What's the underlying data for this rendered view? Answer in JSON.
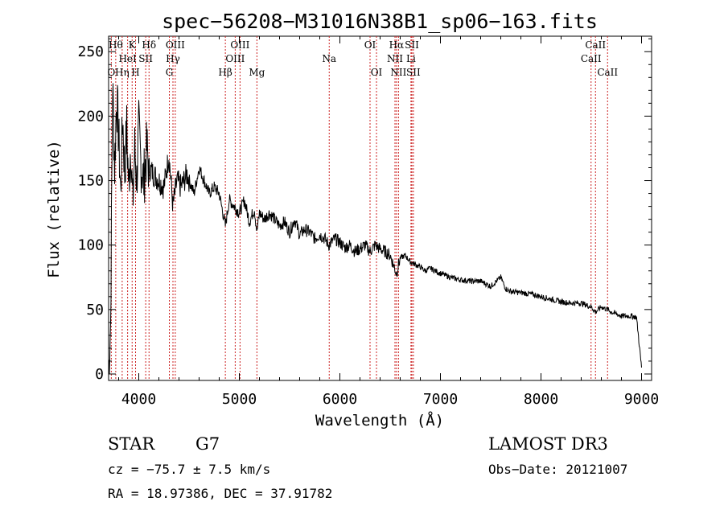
{
  "chart_data": {
    "type": "line",
    "title": "spec−56208−M31016N38B1_sp06−163.fits",
    "xlabel": "Wavelength (Å)",
    "ylabel": "Flux (relative)",
    "xlim": [
      3700,
      9100
    ],
    "ylim": [
      -5,
      262
    ],
    "x_ticks": [
      4000,
      5000,
      6000,
      7000,
      8000,
      9000
    ],
    "y_ticks": [
      0,
      50,
      100,
      150,
      200,
      250
    ],
    "grid": false,
    "series": [
      {
        "name": "spectrum",
        "x": [
          3700,
          3720,
          3740,
          3760,
          3780,
          3800,
          3820,
          3840,
          3860,
          3880,
          3900,
          3920,
          3940,
          3960,
          3980,
          4000,
          4020,
          4050,
          4080,
          4100,
          4150,
          4200,
          4250,
          4300,
          4340,
          4380,
          4420,
          4480,
          4550,
          4600,
          4650,
          4700,
          4750,
          4800,
          4861,
          4900,
          4950,
          5000,
          5050,
          5100,
          5150,
          5175,
          5200,
          5250,
          5300,
          5350,
          5400,
          5450,
          5500,
          5550,
          5600,
          5650,
          5700,
          5750,
          5800,
          5850,
          5890,
          5950,
          6000,
          6050,
          6100,
          6150,
          6200,
          6250,
          6300,
          6350,
          6400,
          6450,
          6500,
          6563,
          6600,
          6650,
          6700,
          6750,
          6800,
          6850,
          6900,
          7000,
          7100,
          7200,
          7300,
          7400,
          7500,
          7600,
          7650,
          7700,
          7800,
          7900,
          8000,
          8100,
          8200,
          8300,
          8400,
          8500,
          8542,
          8600,
          8662,
          8700,
          8800,
          8900,
          8950,
          9000
        ],
        "values": [
          0,
          40,
          225,
          160,
          215,
          185,
          140,
          200,
          155,
          190,
          145,
          180,
          130,
          175,
          150,
          190,
          165,
          150,
          175,
          160,
          155,
          150,
          145,
          170,
          130,
          150,
          145,
          155,
          140,
          160,
          150,
          140,
          145,
          140,
          115,
          135,
          130,
          125,
          135,
          118,
          128,
          110,
          125,
          120,
          125,
          120,
          115,
          118,
          110,
          120,
          108,
          112,
          110,
          105,
          108,
          105,
          100,
          105,
          102,
          98,
          100,
          95,
          97,
          100,
          95,
          100,
          97,
          95,
          92,
          78,
          90,
          92,
          87,
          85,
          83,
          80,
          82,
          78,
          75,
          73,
          72,
          72,
          68,
          75,
          66,
          64,
          63,
          62,
          60,
          58,
          56,
          55,
          55,
          52,
          48,
          52,
          50,
          48,
          45,
          45,
          44,
          5
        ]
      }
    ],
    "spectral_lines": [
      {
        "label": "O",
        "x": 3727,
        "row": 2
      },
      {
        "label": "Hθ",
        "x": 3771,
        "row": 0
      },
      {
        "label": "Hη",
        "x": 3835,
        "row": 2
      },
      {
        "label": "HeI",
        "x": 3889,
        "row": 1
      },
      {
        "label": "K",
        "x": 3934,
        "row": 0
      },
      {
        "label": "H",
        "x": 3968,
        "row": 2
      },
      {
        "label": "SII",
        "x": 4069,
        "row": 1
      },
      {
        "label": "Hδ",
        "x": 4102,
        "row": 0
      },
      {
        "label": "G",
        "x": 4304,
        "row": 2
      },
      {
        "label": "Hγ",
        "x": 4340,
        "row": 1
      },
      {
        "label": "OIII",
        "x": 4363,
        "row": 0
      },
      {
        "label": "Hβ",
        "x": 4861,
        "row": 2
      },
      {
        "label": "OIII",
        "x": 4959,
        "row": 1
      },
      {
        "label": "OIII",
        "x": 5007,
        "row": 0
      },
      {
        "label": "Mg",
        "x": 5175,
        "row": 2
      },
      {
        "label": "Na",
        "x": 5894,
        "row": 1
      },
      {
        "label": "OI",
        "x": 6300,
        "row": 0
      },
      {
        "label": "OI",
        "x": 6364,
        "row": 2
      },
      {
        "label": "NII",
        "x": 6548,
        "row": 1
      },
      {
        "label": "Hα",
        "x": 6563,
        "row": 0
      },
      {
        "label": "NII",
        "x": 6583,
        "row": 2
      },
      {
        "label": "Li",
        "x": 6707,
        "row": 1
      },
      {
        "label": "SII",
        "x": 6716,
        "row": 0
      },
      {
        "label": "SII",
        "x": 6731,
        "row": 2
      },
      {
        "label": "CaII",
        "x": 8498,
        "row": 1
      },
      {
        "label": "CaII",
        "x": 8542,
        "row": 0
      },
      {
        "label": "CaII",
        "x": 8662,
        "row": 2
      }
    ]
  },
  "info": {
    "object_type": "STAR",
    "spectral_class": "G7",
    "survey": "LAMOST DR3",
    "redshift": "cz = −75.7 ± 7.5 km/s",
    "obs_date": "Obs−Date: 20121007",
    "coordinates": "RA =  18.97386, DEC =  37.91782"
  },
  "colors": {
    "spectrum": "#000000",
    "line_markers": "#cc2222",
    "axes": "#000000"
  }
}
